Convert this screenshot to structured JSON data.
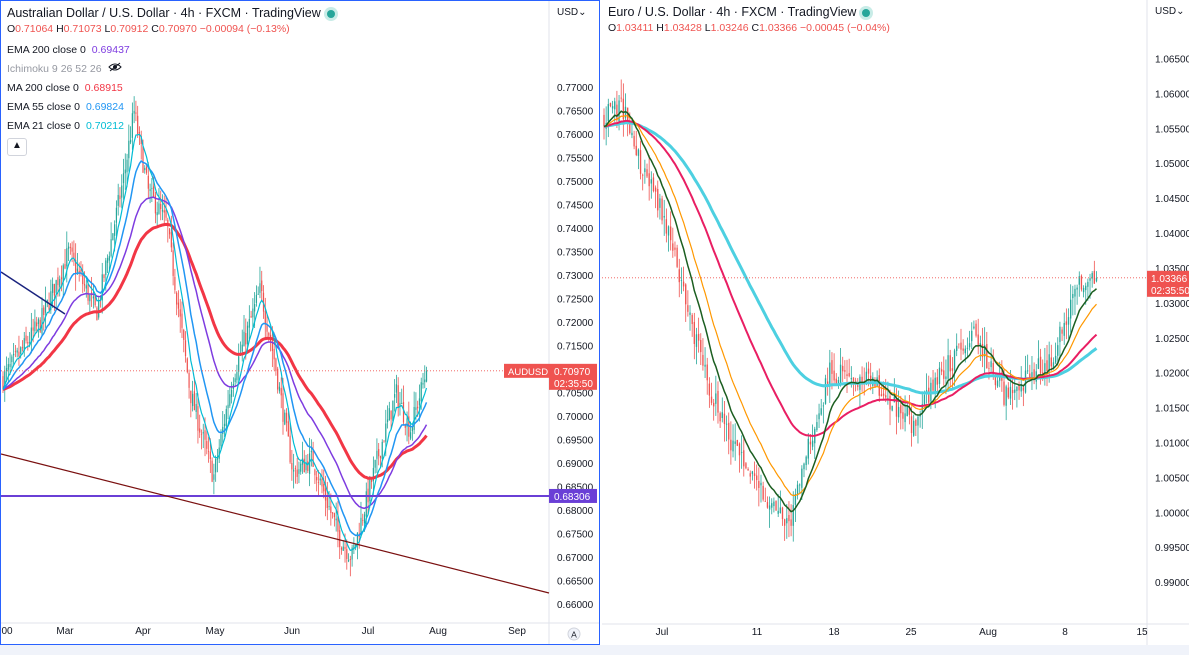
{
  "colors": {
    "up": "#26a69a",
    "down": "#ef5350",
    "axis_text": "#131722",
    "ema200": "#7e3ce0",
    "ma200": "#f23645",
    "ema55": "#2196f3",
    "ema21": "#00bcd4",
    "hline": "#6a3fd6",
    "trendline": "#7a1010",
    "trendline_top": "#1a237e",
    "eur_ema_a": "#e91e63",
    "eur_ema_b": "#4dd0e1",
    "eur_ema_c": "#1b5e20",
    "eur_ema_d": "#ff9800"
  },
  "left": {
    "title": "Australian Dollar / U.S. Dollar · 4h · FXCM · TradingView",
    "ohlc": {
      "o_label": "O",
      "o": "0.71064",
      "h_label": "H",
      "h": "0.71073",
      "l_label": "L",
      "l": "0.70912",
      "c_label": "C",
      "c": "0.70970",
      "chg": "−0.00094 (−0.13%)"
    },
    "indicators": [
      {
        "label": "EMA 200 close 0",
        "value": "0.69437"
      },
      {
        "label": "Ichimoku 9 26 52 26",
        "value": ""
      },
      {
        "label": "MA 200 close 0",
        "value": "0.68915"
      },
      {
        "label": "EMA 55 close 0",
        "value": "0.69824"
      },
      {
        "label": "EMA 21 close 0",
        "value": "0.70212"
      }
    ],
    "currency": "USD",
    "symbol_tag": "AUDUSD",
    "price_tag": "0.70970",
    "countdown": "02:35:50",
    "hline_tag": "0.68306",
    "x_ticks": [
      "00",
      "Mar",
      "Apr",
      "May",
      "Jun",
      "Jul",
      "Aug",
      "Sep"
    ],
    "auto_label": "A"
  },
  "right": {
    "title": "Euro / U.S. Dollar · 4h · FXCM · TradingView",
    "ohlc": {
      "o_label": "O",
      "o": "1.03411",
      "h_label": "H",
      "h": "1.03428",
      "l_label": "L",
      "l": "1.03246",
      "c_label": "C",
      "c": "1.03366",
      "chg": "−0.00045 (−0.04%)"
    },
    "currency": "USD",
    "price_tag": "1.03366",
    "countdown": "02:35:50",
    "x_ticks": [
      "Jul",
      "11",
      "18",
      "25",
      "Aug",
      "8",
      "15"
    ]
  },
  "chart_data": [
    {
      "type": "candlestick",
      "title": "Australian Dollar / U.S. Dollar · 4h · FXCM · TradingView",
      "ylim": [
        0.6575,
        0.7795
      ],
      "y_ticks": [
        "0.77000",
        "0.76500",
        "0.76000",
        "0.75500",
        "0.75000",
        "0.74500",
        "0.74000",
        "0.73500",
        "0.73000",
        "0.72500",
        "0.72000",
        "0.71500",
        "0.71000",
        "0.70500",
        "0.70000",
        "0.69500",
        "0.69000",
        "0.68500",
        "0.68000",
        "0.67500",
        "0.67000",
        "0.66500",
        "0.66000"
      ],
      "x_ticks": [
        "00",
        "Mar",
        "Apr",
        "May",
        "Jun",
        "Jul",
        "Aug",
        "Sep"
      ],
      "key_points": [
        {
          "t": 0.0,
          "close": 0.708
        },
        {
          "t": 0.08,
          "close": 0.72
        },
        {
          "t": 0.14,
          "close": 0.735
        },
        {
          "t": 0.2,
          "close": 0.722
        },
        {
          "t": 0.26,
          "close": 0.752
        },
        {
          "t": 0.28,
          "close": 0.765
        },
        {
          "t": 0.31,
          "close": 0.748
        },
        {
          "t": 0.35,
          "close": 0.741
        },
        {
          "t": 0.4,
          "close": 0.705
        },
        {
          "t": 0.45,
          "close": 0.687
        },
        {
          "t": 0.49,
          "close": 0.708
        },
        {
          "t": 0.55,
          "close": 0.727
        },
        {
          "t": 0.58,
          "close": 0.712
        },
        {
          "t": 0.62,
          "close": 0.688
        },
        {
          "t": 0.66,
          "close": 0.691
        },
        {
          "t": 0.72,
          "close": 0.674
        },
        {
          "t": 0.745,
          "close": 0.67
        },
        {
          "t": 0.8,
          "close": 0.691
        },
        {
          "t": 0.84,
          "close": 0.705
        },
        {
          "t": 0.87,
          "close": 0.697
        },
        {
          "t": 0.905,
          "close": 0.7097
        }
      ],
      "last_close": 0.7097,
      "horizontal_line": 0.68306
    },
    {
      "type": "candlestick",
      "title": "Euro / U.S. Dollar · 4h · FXCM · TradingView",
      "ylim": [
        0.9855,
        1.0683
      ],
      "y_ticks": [
        "1.06500",
        "1.06000",
        "1.05500",
        "1.05000",
        "1.04500",
        "1.04000",
        "1.03500",
        "1.03000",
        "1.02500",
        "1.02000",
        "1.01500",
        "1.01000",
        "1.00500",
        "1.00000",
        "0.99500",
        "0.99000"
      ],
      "x_ticks": [
        "Jul",
        "11",
        "18",
        "25",
        "Aug",
        "8",
        "15"
      ],
      "key_points": [
        {
          "t": 0.0,
          "close": 1.057
        },
        {
          "t": 0.04,
          "close": 1.058
        },
        {
          "t": 0.08,
          "close": 1.048
        },
        {
          "t": 0.12,
          "close": 1.042
        },
        {
          "t": 0.16,
          "close": 1.03
        },
        {
          "t": 0.21,
          "close": 1.017
        },
        {
          "t": 0.26,
          "close": 1.008
        },
        {
          "t": 0.31,
          "close": 1.003
        },
        {
          "t": 0.36,
          "close": 0.998
        },
        {
          "t": 0.4,
          "close": 1.01
        },
        {
          "t": 0.44,
          "close": 1.02
        },
        {
          "t": 0.52,
          "close": 1.019
        },
        {
          "t": 0.6,
          "close": 1.013
        },
        {
          "t": 0.66,
          "close": 1.02
        },
        {
          "t": 0.72,
          "close": 1.026
        },
        {
          "t": 0.78,
          "close": 1.017
        },
        {
          "t": 0.84,
          "close": 1.02
        },
        {
          "t": 0.88,
          "close": 1.023
        },
        {
          "t": 0.92,
          "close": 1.033
        },
        {
          "t": 0.96,
          "close": 1.0337
        }
      ],
      "last_close": 1.03366
    }
  ]
}
